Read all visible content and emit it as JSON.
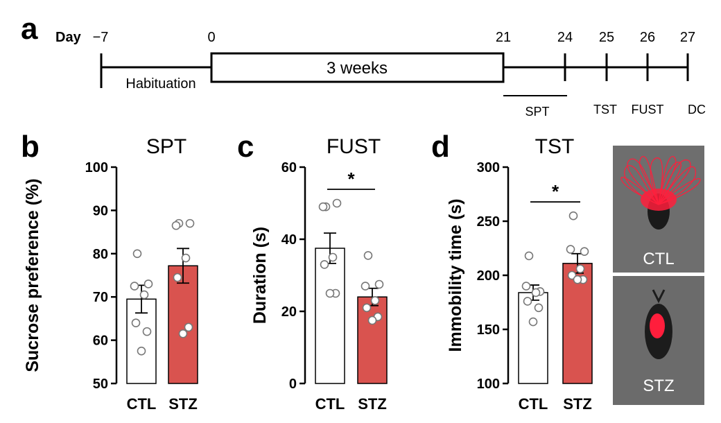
{
  "panels": {
    "a": "a",
    "b": "b",
    "c": "c",
    "d": "d"
  },
  "timeline": {
    "day_label": "Day",
    "ticks": [
      "−7",
      "0",
      "21",
      "24",
      "25",
      "26",
      "27"
    ],
    "habituation": "Habituation",
    "weeks": "3 weeks",
    "spt": "SPT",
    "tst": "TST",
    "fust": "FUST",
    "dc": "DC"
  },
  "colors": {
    "ctl": "#ffffff",
    "stz": "#d9534f",
    "trace": "#ff1e3c"
  },
  "chart_data": [
    {
      "type": "bar",
      "title": "SPT",
      "ylabel": "Sucrose preference (%)",
      "categories": [
        "CTL",
        "STZ"
      ],
      "ylim": [
        50,
        100
      ],
      "yticks": [
        "50",
        "60",
        "70",
        "80",
        "90",
        "100"
      ],
      "values": [
        69.5,
        77.2
      ],
      "sem": [
        3.2,
        4.0
      ],
      "points": [
        [
          80.0,
          72.5,
          73.0,
          70.5,
          64.0,
          62.0,
          57.5
        ],
        [
          87.0,
          86.5,
          87.0,
          79.0,
          74.5,
          63.0,
          61.5
        ]
      ],
      "significance": ""
    },
    {
      "type": "bar",
      "title": "FUST",
      "ylabel": "Duration (s)",
      "categories": [
        "CTL",
        "STZ"
      ],
      "ylim": [
        0,
        60
      ],
      "yticks": [
        "0",
        "20",
        "40",
        "60"
      ],
      "values": [
        37.5,
        24.0
      ],
      "sem": [
        4.2,
        2.4
      ],
      "points": [
        [
          49.0,
          49.0,
          50.0,
          35.0,
          33.0,
          25.0,
          25.0
        ],
        [
          35.5,
          27.0,
          27.5,
          23.0,
          21.0,
          18.5,
          17.5
        ]
      ],
      "significance": "*"
    },
    {
      "type": "bar",
      "title": "TST",
      "ylabel": "Immobility time (s)",
      "categories": [
        "CTL",
        "STZ"
      ],
      "ylim": [
        100,
        300
      ],
      "yticks": [
        "100",
        "150",
        "200",
        "250",
        "300"
      ],
      "values": [
        184.0,
        211.0
      ],
      "sem": [
        7.0,
        9.0
      ],
      "points": [
        [
          218.0,
          190.0,
          185.0,
          184.0,
          176.0,
          170.0,
          157.0
        ],
        [
          255.0,
          224.0,
          222.0,
          206.0,
          200.0,
          196.0,
          196.0
        ]
      ],
      "significance": "*"
    }
  ],
  "photos": {
    "top_caption": "CTL",
    "bottom_caption": "STZ"
  }
}
